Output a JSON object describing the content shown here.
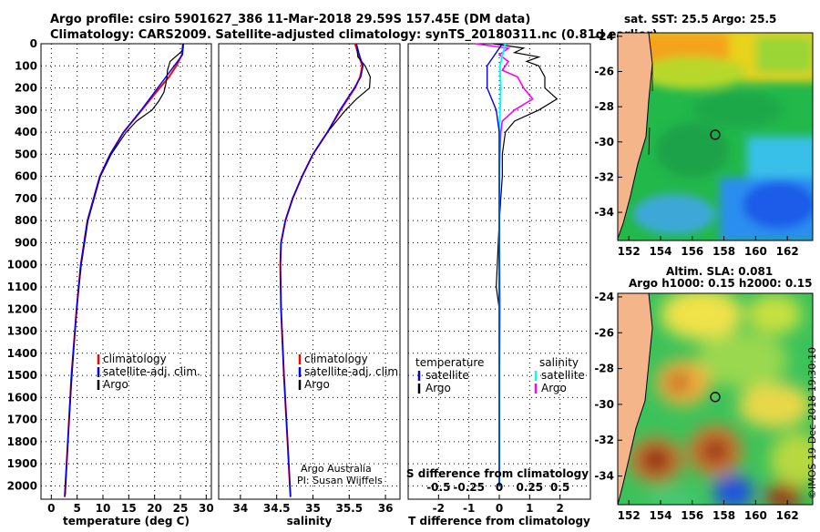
{
  "title_line1": "Argo profile: csiro 5901627_386 11-Mar-2018 29.59S 157.45E (DM data)",
  "title_line2": "Climatology: CARS2009. Satellite-adjusted climatology: synTS_20180311.nc (0.81d earlier)",
  "credit_line1": "Argo Australia",
  "credit_line2": "PI: Susan Wijffels",
  "watermark": "©IMOS 19-Dec-2018 19:30:10",
  "colors": {
    "climatology": "#ff0000",
    "satellite": "#0000ff",
    "argo": "#000000",
    "sat_salinity": "#00ffff",
    "argo_salinity": "#ff00ff",
    "land": "#f5b58a"
  },
  "chart_data": [
    {
      "type": "line",
      "xlabel": "temperature (deg C)",
      "xlim": [
        -2,
        31
      ],
      "ylim": [
        2060,
        0
      ],
      "xticks": [
        0,
        5,
        10,
        15,
        20,
        25,
        30
      ],
      "yticks": [
        0,
        100,
        200,
        300,
        400,
        500,
        600,
        700,
        800,
        900,
        1000,
        1100,
        1200,
        1300,
        1400,
        1500,
        1600,
        1700,
        1800,
        1900,
        2000
      ],
      "legend": [
        "climatology",
        "satellite-adj. clim.",
        "Argo"
      ],
      "series": [
        {
          "name": "climatology",
          "depth": [
            0,
            50,
            100,
            150,
            200,
            300,
            400,
            500,
            600,
            800,
            1000,
            1200,
            1500,
            1800,
            2050
          ],
          "values": [
            25.5,
            25.3,
            24.2,
            22.8,
            21.0,
            17.5,
            14.0,
            11.4,
            9.4,
            7.0,
            5.7,
            4.9,
            3.9,
            3.2,
            2.6
          ]
        },
        {
          "name": "satellite-adj. clim.",
          "depth": [
            0,
            50,
            100,
            150,
            200,
            300,
            400,
            500,
            600,
            800,
            1000,
            1200,
            1500,
            1800,
            2050
          ],
          "values": [
            25.6,
            25.4,
            23.8,
            22.2,
            20.6,
            17.4,
            14.0,
            11.4,
            9.4,
            7.0,
            5.7,
            4.9,
            3.9,
            3.2,
            2.6
          ]
        },
        {
          "name": "Argo",
          "depth": [
            0,
            30,
            50,
            80,
            120,
            150,
            180,
            220,
            260,
            300,
            350,
            400,
            500,
            600,
            800,
            1000,
            1200,
            1500,
            1800,
            2040
          ],
          "values": [
            25.5,
            25.4,
            24.5,
            23.0,
            22.5,
            22.4,
            22.2,
            21.8,
            20.8,
            19.5,
            16.5,
            14.5,
            11.6,
            9.5,
            7.1,
            5.8,
            4.9,
            4.0,
            3.2,
            2.7
          ]
        }
      ]
    },
    {
      "type": "line",
      "xlabel": "salinity",
      "xlim": [
        33.7,
        36.2
      ],
      "ylim": [
        2060,
        0
      ],
      "xticks": [
        34,
        34.5,
        35,
        35.5,
        36
      ],
      "xticklabels": [
        "34",
        "34.5",
        "35",
        "35.5",
        "36"
      ],
      "legend": [
        "climatology",
        "satellite-adj. clim.",
        "Argo"
      ],
      "series": [
        {
          "name": "climatology",
          "depth": [
            0,
            50,
            100,
            150,
            200,
            300,
            400,
            500,
            600,
            700,
            800,
            900,
            1000,
            1200,
            1500,
            1800,
            2050
          ],
          "values": [
            35.58,
            35.63,
            35.68,
            35.65,
            35.58,
            35.38,
            35.2,
            35.0,
            34.85,
            34.72,
            34.62,
            34.56,
            34.55,
            34.56,
            34.6,
            34.65,
            34.69
          ]
        },
        {
          "name": "satellite-adj. clim.",
          "depth": [
            0,
            50,
            100,
            150,
            200,
            300,
            400,
            500,
            600,
            700,
            800,
            900,
            1000,
            1200,
            1500,
            1800,
            2050
          ],
          "values": [
            35.6,
            35.64,
            35.69,
            35.66,
            35.57,
            35.37,
            35.2,
            35.0,
            34.85,
            34.72,
            34.62,
            34.56,
            34.55,
            34.56,
            34.6,
            34.65,
            34.69
          ]
        },
        {
          "name": "Argo",
          "depth": [
            0,
            60,
            100,
            150,
            200,
            250,
            300,
            400,
            500,
            600,
            700,
            800,
            900,
            1000,
            1200,
            1500,
            1800,
            2040
          ],
          "values": [
            35.6,
            35.62,
            35.72,
            35.79,
            35.78,
            35.6,
            35.45,
            35.2,
            35.0,
            34.85,
            34.72,
            34.62,
            34.56,
            34.55,
            34.56,
            34.6,
            34.65,
            34.69
          ]
        }
      ]
    },
    {
      "type": "line",
      "xlabel": "T difference from climatology",
      "title_bottom": "S difference from climatology",
      "xlim": [
        -3,
        3
      ],
      "ylim": [
        2060,
        0
      ],
      "xticks": [
        -2,
        -1,
        0,
        1,
        2
      ],
      "s_ticklabels": [
        "-0.5",
        "-0.25",
        "0",
        "0.25",
        "0.5"
      ],
      "legend_t": {
        "heading": "temperature",
        "items": [
          "satellite",
          "Argo"
        ]
      },
      "legend_s": {
        "heading": "salinity",
        "items": [
          "satellite",
          "Argo"
        ]
      },
      "series": [
        {
          "name": "T satellite",
          "depth": [
            0,
            100,
            200,
            300,
            400,
            600,
            1000,
            1500,
            2000
          ],
          "values": [
            0.1,
            -0.4,
            -0.4,
            -0.1,
            0,
            0,
            0,
            0,
            0
          ]
        },
        {
          "name": "T Argo",
          "depth": [
            0,
            20,
            40,
            60,
            80,
            100,
            150,
            200,
            250,
            300,
            350,
            400,
            500,
            600,
            800,
            1100,
            1200,
            1500,
            2000
          ],
          "values": [
            -0.2,
            0.8,
            0.5,
            1.3,
            0.9,
            1.3,
            1.5,
            1.5,
            1.9,
            1.3,
            0.5,
            0.2,
            0.1,
            0.1,
            0.0,
            -0.1,
            0.0,
            0.0,
            0.0
          ]
        },
        {
          "name": "S satellite",
          "depth": [
            0,
            100,
            200,
            400,
            800,
            1200,
            2000
          ],
          "values": [
            0.2,
            0.02,
            0.05,
            0.0,
            0.0,
            0.0,
            0.0
          ]
        },
        {
          "name": "S Argo",
          "depth": [
            0,
            20,
            50,
            80,
            120,
            150,
            200,
            250,
            300,
            350,
            400,
            500,
            600,
            800,
            1200,
            1600,
            2000
          ],
          "values": [
            -0.8,
            0.3,
            0.0,
            0.3,
            0.1,
            0.6,
            0.8,
            1.1,
            0.5,
            0.1,
            0.05,
            0.02,
            0.0,
            0.0,
            0.02,
            0.0,
            0.0
          ]
        }
      ]
    },
    {
      "type": "heatmap",
      "title": "sat. SST: 25.5 Argo: 25.5",
      "xticks": [
        152,
        154,
        156,
        158,
        160,
        162
      ],
      "yticks": [
        -24,
        -26,
        -28,
        -30,
        -32,
        -34
      ],
      "xlim": [
        151.3,
        163.6
      ],
      "ylim": [
        -35.6,
        -23.8
      ],
      "profile_location": {
        "lon": 157.45,
        "lat": -29.59
      }
    },
    {
      "type": "heatmap",
      "title_line1": "Altim. SLA: 0.081",
      "title_line2": "Argo h1000: 0.15 h2000: 0.15",
      "xticks": [
        152,
        154,
        156,
        158,
        160,
        162
      ],
      "yticks": [
        -24,
        -26,
        -28,
        -30,
        -32,
        -34
      ],
      "xlim": [
        151.3,
        163.6
      ],
      "ylim": [
        -35.6,
        -23.8
      ],
      "profile_location": {
        "lon": 157.45,
        "lat": -29.59
      }
    }
  ]
}
